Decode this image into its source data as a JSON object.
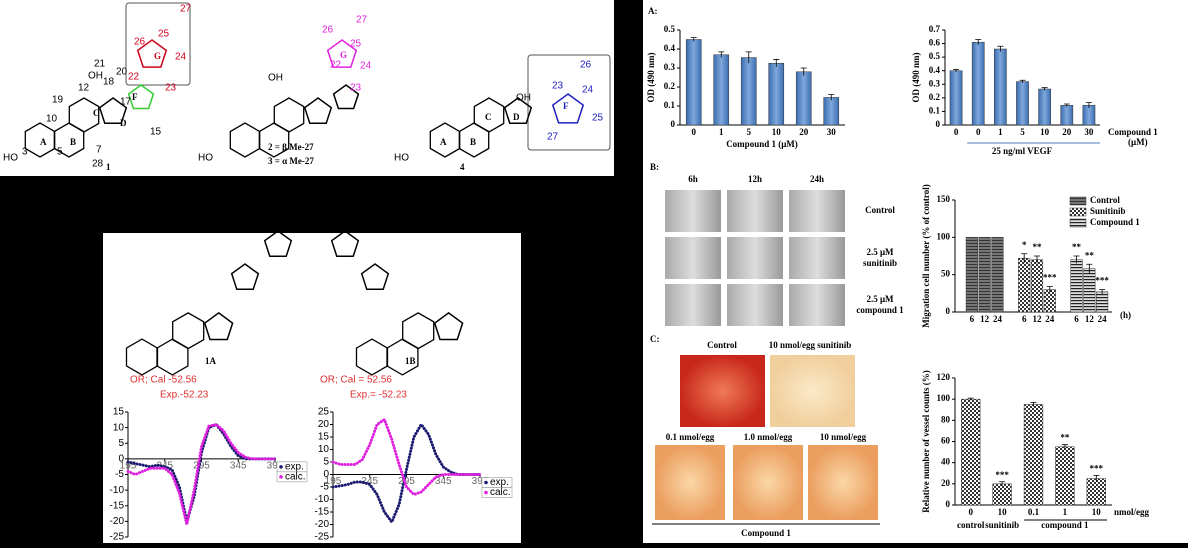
{
  "structures": {
    "compound_1": [
      "27",
      "25",
      "26",
      "G",
      "24",
      "22",
      "23",
      "21",
      "20",
      "F",
      "18",
      "17",
      "12",
      "OH",
      "19",
      "10",
      "C",
      "D",
      "15",
      "A",
      "B",
      "3",
      "HO",
      "5",
      "7",
      "28",
      "1"
    ],
    "compound_2_3": [
      "27",
      "26",
      "25",
      "22",
      "G",
      "24",
      "23",
      "OH",
      "HO",
      "2 = β Me-27",
      "3 = α Me-27"
    ],
    "compound_4": [
      "26",
      "23",
      "24",
      "F",
      "25",
      "27",
      "OH",
      "A",
      "B",
      "C",
      "D",
      "HO",
      "4"
    ]
  },
  "cd_panel": {
    "structure_labels": [
      "1A",
      "1B"
    ],
    "or_texts": [
      "OR; Cal -52.56",
      "Exp.-52.23",
      "OR; Cal = 52.56",
      "Exp.= -52.23"
    ],
    "plots": [
      {
        "type": "line",
        "x": [
          195,
          205,
          215,
          225,
          235,
          245,
          255,
          265,
          275,
          285,
          295,
          305,
          315,
          325,
          335,
          345,
          355,
          365,
          375,
          385,
          395
        ],
        "xlim": [
          195,
          395
        ],
        "xticks": [
          195,
          245,
          295,
          345,
          395
        ],
        "ylim": [
          -25,
          15
        ],
        "yticks": [
          -25,
          -20,
          -15,
          -10,
          -5,
          0,
          5,
          10,
          15
        ],
        "series": [
          {
            "name": "exp.",
            "color": "#1a1a6e",
            "values": [
              -1,
              -1.5,
              -2,
              -2.5,
              -2,
              -2.5,
              -3.5,
              -9,
              -20,
              -12,
              2,
              10,
              11,
              8,
              4,
              1,
              0,
              0,
              0,
              0,
              0
            ]
          },
          {
            "name": "calc.",
            "color": "#e020e0",
            "values": [
              -4,
              -5,
              -4,
              -3,
              -3,
              -3,
              -5,
              -11,
              -21,
              -10,
              4,
              10.5,
              11,
              9,
              5,
              2,
              0.5,
              0,
              0,
              0,
              0
            ]
          }
        ]
      },
      {
        "type": "line",
        "x": [
          195,
          205,
          215,
          225,
          235,
          245,
          255,
          265,
          275,
          285,
          295,
          305,
          315,
          325,
          335,
          345,
          355,
          365,
          375,
          385,
          395
        ],
        "xlim": [
          195,
          395
        ],
        "xticks": [
          195,
          245,
          295,
          345,
          395
        ],
        "ylim": [
          -25,
          25
        ],
        "yticks": [
          -25,
          -20,
          -15,
          -10,
          -5,
          0,
          5,
          10,
          15,
          20,
          25
        ],
        "series": [
          {
            "name": "exp.",
            "color": "#1a1a6e",
            "values": [
              -5,
              -4.5,
              -4,
              -3,
              -3,
              -4,
              -8,
              -15,
              -19,
              -12,
              2,
              15,
              20,
              16,
              8,
              3,
              1,
              0,
              0,
              0,
              0
            ]
          },
          {
            "name": "calc.",
            "color": "#e020e0",
            "values": [
              5,
              4,
              4,
              4,
              6,
              12,
              20,
              22,
              14,
              4,
              -5,
              -8,
              -7,
              -4,
              -1,
              0,
              0,
              0,
              0,
              0,
              0
            ]
          }
        ]
      }
    ]
  },
  "panel_a": {
    "label": "A:",
    "charts": [
      {
        "type": "bar",
        "categories": [
          "0",
          "1",
          "5",
          "10",
          "20",
          "30"
        ],
        "values": [
          0.45,
          0.37,
          0.355,
          0.325,
          0.28,
          0.145
        ],
        "errors": [
          0.01,
          0.015,
          0.03,
          0.02,
          0.02,
          0.015
        ],
        "color": "#4f81bd",
        "ylim": [
          0,
          0.5
        ],
        "yticks": [
          0,
          0.1,
          0.2,
          0.3,
          0.4,
          0.5
        ],
        "ylabel": "OD (490 nm)",
        "xlabel": "Compound 1 (μM)"
      },
      {
        "type": "bar",
        "categories": [
          "0",
          "0",
          "1",
          "5",
          "10",
          "20",
          "30"
        ],
        "values": [
          0.4,
          0.61,
          0.56,
          0.32,
          0.265,
          0.145,
          0.145
        ],
        "errors": [
          0.01,
          0.02,
          0.02,
          0.01,
          0.01,
          0.01,
          0.02
        ],
        "color": "#4f81bd",
        "ylim": [
          0,
          0.7
        ],
        "yticks": [
          0,
          0.1,
          0.2,
          0.3,
          0.4,
          0.5,
          0.6,
          0.7
        ],
        "ylabel": "OD (490 nm)",
        "xlabel": "Compound 1",
        "xlabel_unit": "(μM)",
        "group_label": "25 ng/ml VEGF"
      }
    ]
  },
  "panel_b": {
    "label": "B:",
    "time_labels": [
      "6h",
      "12h",
      "24h"
    ],
    "row_labels": [
      [
        "Control"
      ],
      [
        "2.5 μM",
        "sunitinib"
      ],
      [
        "2.5 μM",
        "compound 1"
      ]
    ],
    "chart": {
      "type": "bar",
      "categories": [
        "6",
        "12",
        "24"
      ],
      "x_unit": "(h)",
      "ylim": [
        0,
        150
      ],
      "yticks": [
        0,
        50,
        100,
        150
      ],
      "ylabel": "Migration cell number (% of control)",
      "series": [
        {
          "name": "Control",
          "values": [
            100,
            100,
            100
          ],
          "errors": [
            0,
            0,
            0
          ],
          "annotations": [
            null,
            null,
            null
          ]
        },
        {
          "name": "Sunitinib",
          "values": [
            72,
            70,
            30
          ],
          "errors": [
            6,
            5,
            4
          ],
          "annotations": [
            "*",
            "**",
            "***"
          ]
        },
        {
          "name": "Compound 1",
          "values": [
            70,
            58,
            27
          ],
          "errors": [
            5,
            6,
            3
          ],
          "annotations": [
            "**",
            "**",
            "***"
          ]
        }
      ]
    }
  },
  "panel_c": {
    "label": "C:",
    "photo_labels": [
      "Control",
      "10 nmol/egg sunitinib",
      "0.1 nmol/egg",
      "1.0 nmol/egg",
      "10 nmol/egg"
    ],
    "photo_group": "Compound 1",
    "chart": {
      "type": "bar",
      "categories": [
        "0",
        "10",
        "0.1",
        "1",
        "10"
      ],
      "values": [
        100,
        20,
        95,
        55,
        25
      ],
      "errors": [
        1,
        2,
        2,
        2,
        3
      ],
      "annotations": [
        null,
        "***",
        null,
        "**",
        "***"
      ],
      "x_unit": "nmol/egg",
      "groups": [
        "control",
        "sunitinib",
        "compound 1"
      ],
      "ylim": [
        0,
        120
      ],
      "yticks": [
        0,
        20,
        40,
        60,
        80,
        100,
        120
      ],
      "ylabel": "Relative number of vessel counts (%)"
    }
  }
}
